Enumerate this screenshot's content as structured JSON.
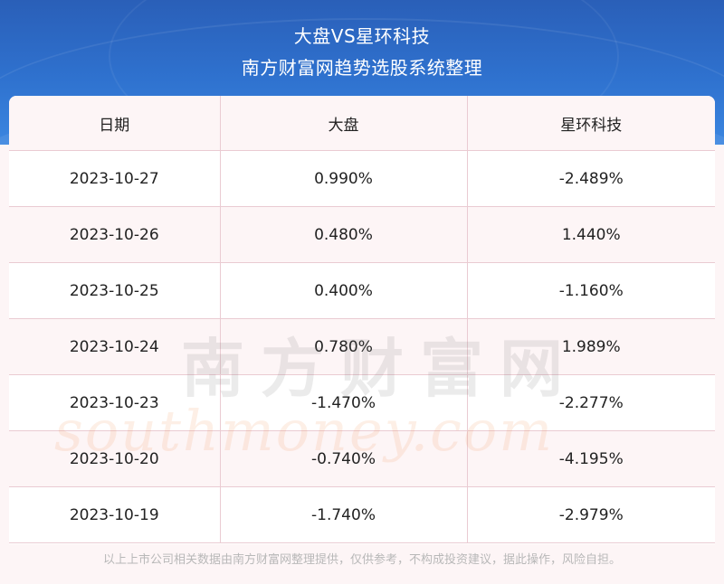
{
  "header": {
    "title_line1": "大盘VS星环科技",
    "title_line2": "南方财富网趋势选股系统整理"
  },
  "chart_data": {
    "type": "table",
    "columns": [
      "日期",
      "大盘",
      "星环科技"
    ],
    "rows": [
      {
        "date": "2023-10-27",
        "market": "0.990%",
        "stock": "-2.489%"
      },
      {
        "date": "2023-10-26",
        "market": "0.480%",
        "stock": "1.440%"
      },
      {
        "date": "2023-10-25",
        "market": "0.400%",
        "stock": "-1.160%"
      },
      {
        "date": "2023-10-24",
        "market": "0.780%",
        "stock": "1.989%"
      },
      {
        "date": "2023-10-23",
        "market": "-1.470%",
        "stock": "-2.277%"
      },
      {
        "date": "2023-10-20",
        "market": "-0.740%",
        "stock": "-4.195%"
      },
      {
        "date": "2023-10-19",
        "market": "-1.740%",
        "stock": "-2.979%"
      }
    ]
  },
  "watermark": {
    "cn": "南方财富网",
    "en": "southmoney.com"
  },
  "footer": {
    "disclaimer": "以上上市公司相关数据由南方财富网整理提供，仅供参考，不构成投资建议，据此操作，风险自担。"
  },
  "colors": {
    "banner": "#2f72cf",
    "row_alt": "#fdf5f6",
    "grid": "#eacbd2"
  }
}
